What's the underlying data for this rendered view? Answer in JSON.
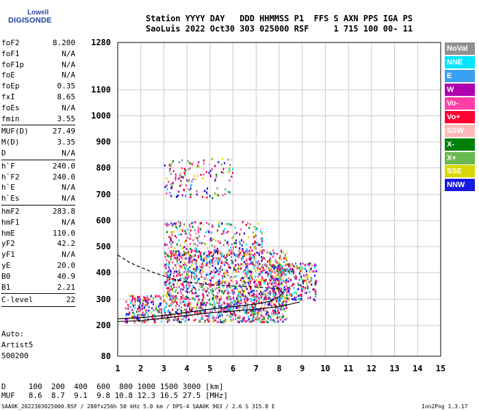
{
  "logo": {
    "top": "Lowell",
    "bottom": "DIGISONDE"
  },
  "header": {
    "line1": "Station YYYY DAY   DDD HHMMSS P1  FFS S AXN PPS IGA PS",
    "line2": "SaoLuis 2022 Oct30 303 025000 RSF     1 715 100 00- 11"
  },
  "params": [
    [
      {
        "label": "foF2",
        "value": "8.200"
      },
      {
        "label": "foF1",
        "value": "N/A"
      },
      {
        "label": "foF1p",
        "value": "N/A"
      },
      {
        "label": "foE",
        "value": "N/A"
      },
      {
        "label": "foEp",
        "value": "0.35"
      },
      {
        "label": "fxI",
        "value": "8.65"
      },
      {
        "label": "foEs",
        "value": "N/A"
      },
      {
        "label": "fmin",
        "value": "3.55"
      }
    ],
    [
      {
        "label": "MUF(D)",
        "value": "27.49"
      },
      {
        "label": "M(D)",
        "value": "3.35"
      },
      {
        "label": "D",
        "value": "N/A"
      }
    ],
    [
      {
        "label": "h`F",
        "value": "240.0"
      },
      {
        "label": "h`F2",
        "value": "240.0"
      },
      {
        "label": "h`E",
        "value": "N/A"
      },
      {
        "label": "h`Es",
        "value": "N/A"
      }
    ],
    [
      {
        "label": "hmF2",
        "value": "283.8"
      },
      {
        "label": "hmF1",
        "value": "N/A"
      },
      {
        "label": "hmE",
        "value": "110.0"
      },
      {
        "label": "yF2",
        "value": "42.2"
      },
      {
        "label": "yF1",
        "value": "N/A"
      },
      {
        "label": "yE",
        "value": "20.0"
      },
      {
        "label": "B0",
        "value": "40.9"
      },
      {
        "label": "B1",
        "value": "2.21"
      }
    ],
    [
      {
        "label": "C-level",
        "value": "22"
      }
    ]
  ],
  "autoscale": {
    "line1": "Auto:",
    "line2": "Artist5",
    "line3": "500200"
  },
  "legend": [
    {
      "label": "NoVal",
      "color": "#909090"
    },
    {
      "label": "NNE",
      "color": "#00e5ff"
    },
    {
      "label": "E",
      "color": "#3aa0f0"
    },
    {
      "label": "W",
      "color": "#b000b0"
    },
    {
      "label": "Vo-",
      "color": "#ff3fa8"
    },
    {
      "label": "Vo+",
      "color": "#ff0030"
    },
    {
      "label": "SSW",
      "color": "#ffb8b8"
    },
    {
      "label": "X-",
      "color": "#00800a"
    },
    {
      "label": "X+",
      "color": "#6ab850"
    },
    {
      "label": "SSE",
      "color": "#d8d800"
    },
    {
      "label": "NNW",
      "color": "#1818e0"
    }
  ],
  "table": {
    "d_line": "D     100  200  400  600  800 1000 1500 3000 [km]",
    "muf_line": "MUF   8.6  8.7  9.1  9.8 10.8 12.3 16.5 27.5 [MHz]"
  },
  "footer": {
    "left": "SAA0K_2022303025000.RSF / 280fx256h 50 kHz 5.0 km / DPS-4 SAA0K 903 / 2.6 S 315.8 E",
    "right": "Ion2Png 1.3.17"
  },
  "chart_data": {
    "type": "scatter",
    "x_ticks": [
      1,
      2,
      3,
      4,
      5,
      6,
      7,
      8,
      9,
      10,
      11,
      12,
      13,
      14,
      15
    ],
    "y_ticks": [
      80,
      200,
      300,
      400,
      500,
      600,
      700,
      800,
      900,
      1000,
      1100,
      1280
    ],
    "xlim": [
      1,
      15
    ],
    "ylim": [
      80,
      1280
    ],
    "grid": true,
    "traces": [
      {
        "name": "O-trace profile",
        "x": [
          1.0,
          2.0,
          3.0,
          4.0,
          5.0,
          6.0,
          7.0,
          7.6,
          8.0,
          8.2
        ],
        "y": [
          225,
          230,
          238,
          250,
          262,
          272,
          282,
          292,
          310,
          330
        ]
      },
      {
        "name": "X-trace",
        "x": [
          1.0,
          2.0,
          3.0,
          4.0,
          5.0,
          6.0,
          7.0,
          7.8,
          8.3,
          8.9
        ],
        "y": [
          215,
          218,
          228,
          238,
          248,
          255,
          262,
          270,
          278,
          290
        ]
      },
      {
        "name": "Dashed profile",
        "x": [
          1.0,
          1.5,
          2.0,
          2.5,
          3.0,
          3.5,
          4.0,
          5.0,
          6.0,
          7.0,
          8.0,
          8.2
        ],
        "y": [
          468,
          440,
          420,
          402,
          388,
          375,
          365,
          355,
          350,
          346,
          340,
          320
        ]
      }
    ],
    "echo_clouds": [
      {
        "x_range": [
          1.3,
          8.3
        ],
        "y_range": [
          215,
          320
        ],
        "density": "high"
      },
      {
        "x_range": [
          3.0,
          8.3
        ],
        "y_range": [
          320,
          490
        ],
        "density": "high"
      },
      {
        "x_range": [
          3.0,
          7.3
        ],
        "y_range": [
          440,
          600
        ],
        "density": "medium"
      },
      {
        "x_range": [
          3.0,
          6.0
        ],
        "y_range": [
          690,
          840
        ],
        "density": "low"
      },
      {
        "x_range": [
          7.5,
          9.6
        ],
        "y_range": [
          300,
          440
        ],
        "density": "medium"
      }
    ]
  }
}
